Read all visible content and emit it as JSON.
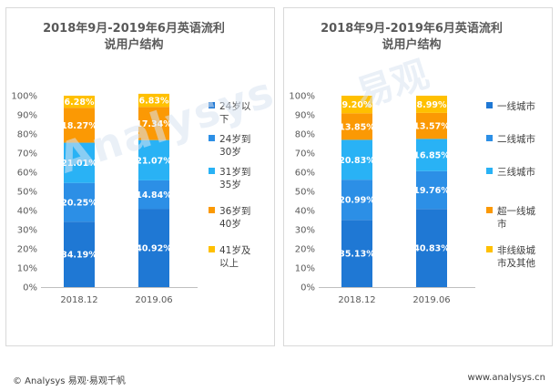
{
  "footer": {
    "copyright": "© Analysys 易观·易观千帆",
    "website": "www.analysys.cn"
  },
  "colors": {
    "dark_blue": "#1f78d4",
    "mid_blue": "#2c8fe6",
    "light_blue": "#29b2f5",
    "orange": "#fb9904",
    "yellow": "#ffc000"
  },
  "chart_data": [
    {
      "type": "bar",
      "stacked": true,
      "title": [
        "2018年9月-2019年6月英语流利",
        "说用户结构"
      ],
      "categories": [
        "2018.12",
        "2019.06"
      ],
      "yticks": [
        "0%",
        "10%",
        "20%",
        "30%",
        "40%",
        "50%",
        "60%",
        "70%",
        "80%",
        "90%",
        "100%"
      ],
      "ylim": [
        0,
        100
      ],
      "series": [
        {
          "name": "24岁以下",
          "legend_lines": [
            "24岁以",
            "下"
          ],
          "color": "#1f78d4",
          "values": [
            34.19,
            40.92
          ],
          "labels": [
            "34.19%",
            "40.92%"
          ]
        },
        {
          "name": "24岁到30岁",
          "legend_lines": [
            "24岁到",
            "30岁"
          ],
          "color": "#2c8fe6",
          "values": [
            20.25,
            14.84
          ],
          "labels": [
            "20.25%",
            "14.84%"
          ]
        },
        {
          "name": "31岁到35岁",
          "legend_lines": [
            "31岁到",
            "35岁"
          ],
          "color": "#29b2f5",
          "values": [
            21.01,
            21.07
          ],
          "labels": [
            "21.01%",
            "21.07%"
          ]
        },
        {
          "name": "36岁到40岁",
          "legend_lines": [
            "36岁到",
            "40岁"
          ],
          "color": "#fb9904",
          "values": [
            18.27,
            17.34
          ],
          "labels": [
            "18.27%",
            "17.34%"
          ]
        },
        {
          "name": "41岁及以上",
          "legend_lines": [
            "41岁及",
            "以上"
          ],
          "color": "#ffc000",
          "values": [
            6.28,
            6.83
          ],
          "labels": [
            "6.28%",
            "6.83%"
          ]
        }
      ]
    },
    {
      "type": "bar",
      "stacked": true,
      "title": [
        "2018年9月-2019年6月英语流利",
        "说用户结构"
      ],
      "categories": [
        "2018.12",
        "2019.06"
      ],
      "yticks": [
        "0%",
        "10%",
        "20%",
        "30%",
        "40%",
        "50%",
        "60%",
        "70%",
        "80%",
        "90%",
        "100%"
      ],
      "ylim": [
        0,
        100
      ],
      "series": [
        {
          "name": "一线城市",
          "legend_lines": [
            "一线城市"
          ],
          "color": "#1f78d4",
          "values": [
            35.13,
            40.83
          ],
          "labels": [
            "35.13%",
            "40.83%"
          ]
        },
        {
          "name": "二线城市",
          "legend_lines": [
            "二线城市"
          ],
          "color": "#2c8fe6",
          "values": [
            20.99,
            19.76
          ],
          "labels": [
            "20.99%",
            "19.76%"
          ]
        },
        {
          "name": "三线城市",
          "legend_lines": [
            "三线城市"
          ],
          "color": "#29b2f5",
          "values": [
            20.83,
            16.85
          ],
          "labels": [
            "20.83%",
            "16.85%"
          ]
        },
        {
          "name": "超一线城市",
          "legend_lines": [
            "超一线城",
            "市"
          ],
          "color": "#fb9904",
          "values": [
            13.85,
            13.57
          ],
          "labels": [
            "13.85%",
            "13.57%"
          ]
        },
        {
          "name": "非线级城市及其他",
          "legend_lines": [
            "非线级城",
            "市及其他"
          ],
          "color": "#ffc000",
          "values": [
            9.2,
            8.99
          ],
          "labels": [
            "9.20%",
            "8.99%"
          ]
        }
      ]
    }
  ]
}
